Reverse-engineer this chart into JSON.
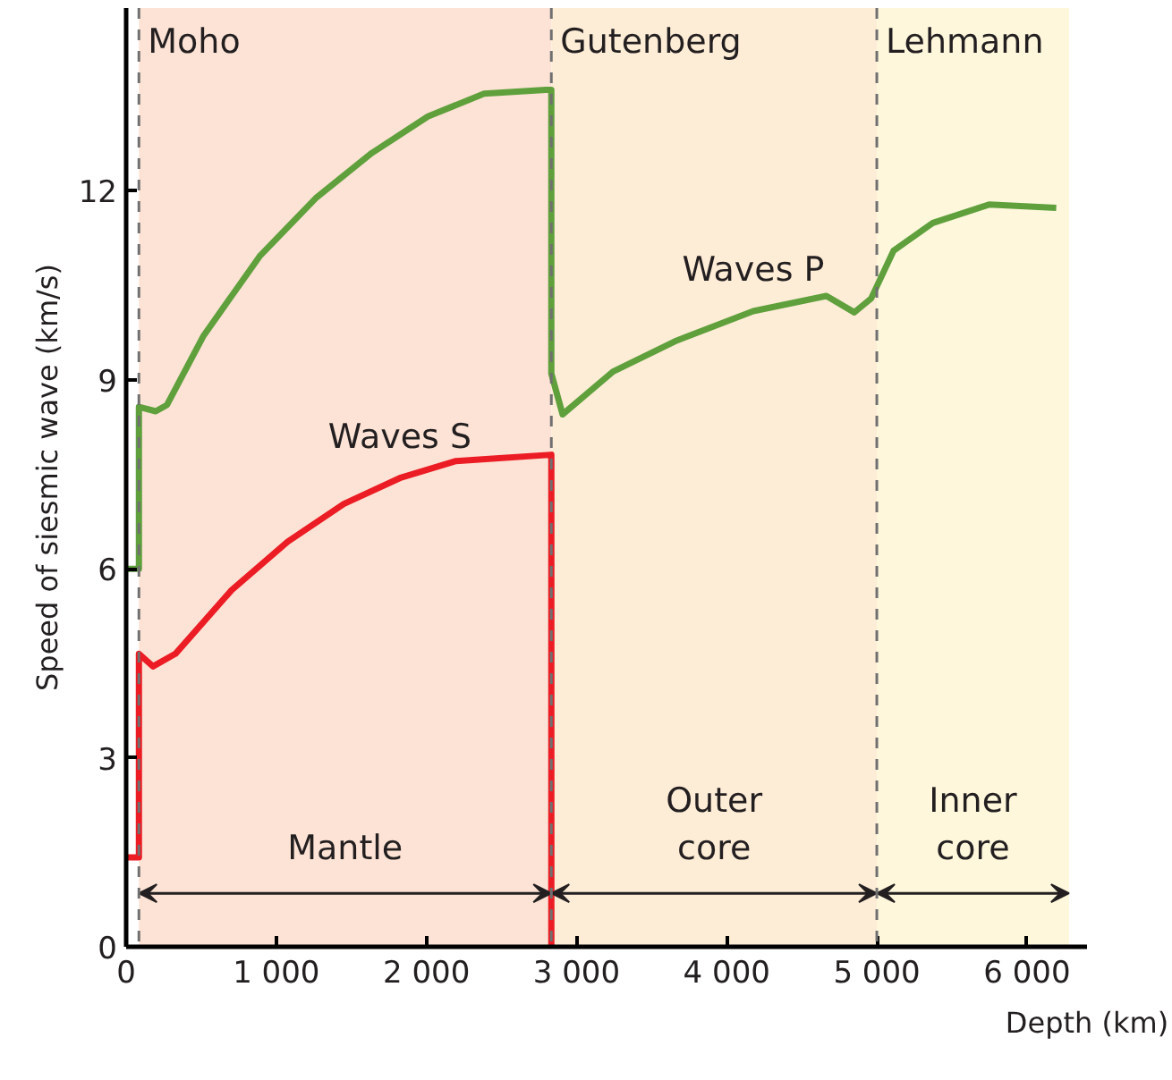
{
  "chart_data": {
    "type": "line",
    "xlabel": "Depth (km)",
    "ylabel": "Speed of siesmic wave (km/s)",
    "xlim": [
      0,
      6400
    ],
    "ylim": [
      0,
      14.9
    ],
    "xticks": [
      0,
      {
        "value": 1000,
        "label": "1 000"
      },
      {
        "value": 2000,
        "label": "2 000"
      },
      {
        "value": 3000,
        "label": "3 000"
      },
      {
        "value": 4000,
        "label": "4 000"
      },
      {
        "value": 5000,
        "label": "5 000"
      },
      {
        "value": 6000,
        "label": "6 000"
      }
    ],
    "yticks": [
      0,
      3,
      6,
      9,
      12
    ],
    "grid": false,
    "line_style": "solid",
    "series": [
      {
        "name": "Waves P",
        "color": "#5fa03c",
        "x": [
          0,
          85,
          85,
          197,
          272,
          516,
          889,
          1262,
          1637,
          2010,
          2384,
          2795,
          2832,
          2832,
          2907,
          3243,
          3655,
          4177,
          4664,
          4850,
          4962,
          5112,
          5373,
          5747,
          6195
        ],
        "values": [
          6.0,
          6.0,
          8.57,
          8.5,
          8.6,
          9.7,
          10.96,
          11.88,
          12.6,
          13.18,
          13.54,
          13.6,
          13.6,
          9.1,
          8.45,
          9.13,
          9.61,
          10.09,
          10.33,
          10.07,
          10.29,
          11.05,
          11.49,
          11.78,
          11.73
        ]
      },
      {
        "name": "Waves S",
        "color": "#ec1c24",
        "x": [
          0,
          85,
          85,
          179,
          328,
          702,
          1076,
          1450,
          1823,
          2197,
          2832,
          2832
        ],
        "values": [
          1.42,
          1.42,
          4.65,
          4.45,
          4.65,
          5.66,
          6.43,
          7.03,
          7.44,
          7.71,
          7.81,
          0
        ]
      }
    ],
    "ref_lines": [
      {
        "axis": "x",
        "value": 85,
        "label": "Moho",
        "color": "#707070",
        "line_style": "dashed"
      },
      {
        "axis": "x",
        "value": 2832,
        "label": "Gutenberg",
        "color": "#707070",
        "line_style": "dashed"
      },
      {
        "axis": "x",
        "value": 5000,
        "label": "Lehmann",
        "color": "#707070",
        "line_style": "dashed"
      }
    ],
    "bands": [
      {
        "axis": "x",
        "from": 85,
        "to": 2832,
        "label": "Mantle",
        "color": "#fce3d5"
      },
      {
        "axis": "x",
        "from": 2832,
        "to": 5000,
        "label": "Outer\ncore",
        "color": "#fdecd6"
      },
      {
        "axis": "x",
        "from": 5000,
        "to": 6280,
        "label": "Inner\ncore",
        "color": "#fef7dc"
      }
    ]
  }
}
